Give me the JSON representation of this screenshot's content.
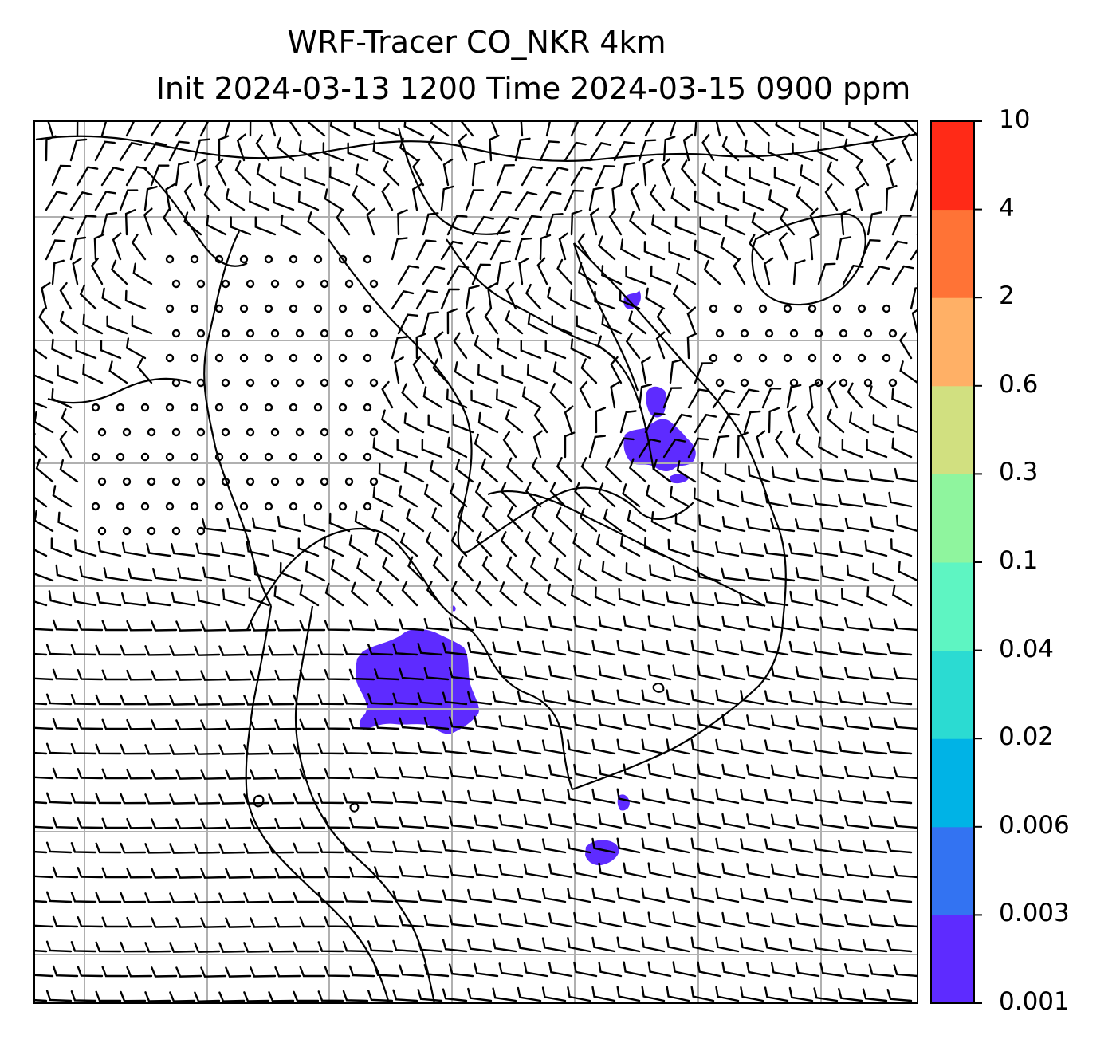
{
  "title_line1": "WRF-Tracer CO_NKR 4km",
  "title_line2": "Init 2024-03-13 1200 Time 2024-03-15 0900 ppm",
  "colorbar": {
    "levels": [
      "0.001",
      "0.003",
      "0.006",
      "0.02",
      "0.04",
      "0.1",
      "0.3",
      "0.6",
      "2",
      "4",
      "10"
    ],
    "colors": [
      "#5e2bff",
      "#3373f2",
      "#00b3e6",
      "#2bdbd2",
      "#5ef5c2",
      "#8ff59e",
      "#d1e080",
      "#ffb066",
      "#ff7336",
      "#ff2a17"
    ]
  },
  "tracer_color": "#5e2bff"
}
